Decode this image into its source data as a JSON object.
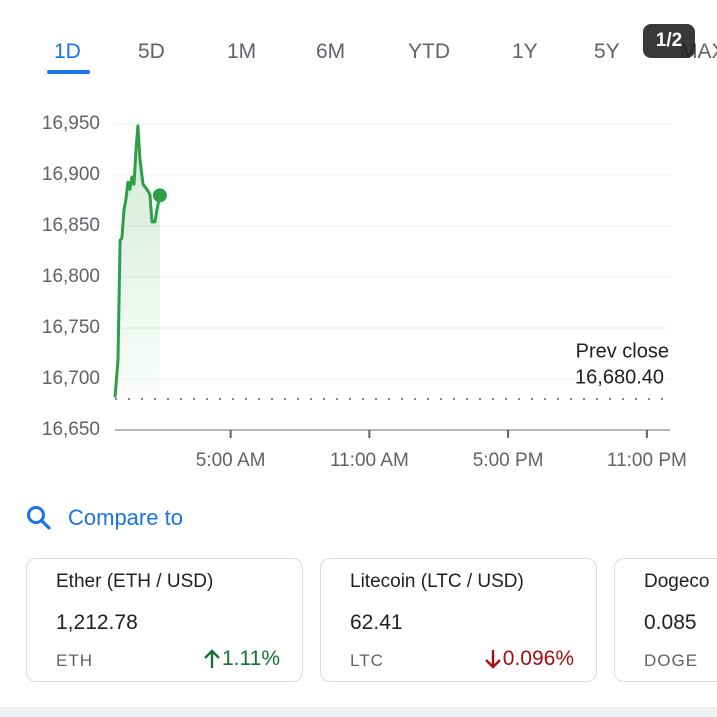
{
  "badge": "1/2",
  "tabs": [
    "1D",
    "5D",
    "1M",
    "6M",
    "YTD",
    "1Y",
    "5Y",
    "MAX"
  ],
  "chart_data": {
    "type": "line",
    "color": "#2e9e47",
    "grid": true,
    "x": [
      0,
      0.13,
      0.22,
      0.3,
      0.39,
      0.47,
      0.56,
      0.65,
      0.73,
      0.82,
      0.91,
      0.99,
      1.08,
      1.21,
      1.38,
      1.51,
      1.6,
      1.73,
      1.81,
      1.94
    ],
    "values": [
      16682,
      16719,
      16836,
      16838,
      16866,
      16876,
      16893,
      16886,
      16898,
      16891,
      16925,
      16948,
      16915,
      16891,
      16886,
      16881,
      16854,
      16854,
      16866,
      16880
    ],
    "xlim": [
      0,
      24
    ],
    "xticks": [
      {
        "value": 5,
        "label": "5:00 AM"
      },
      {
        "value": 11,
        "label": "11:00 AM"
      },
      {
        "value": 17,
        "label": "5:00 PM"
      },
      {
        "value": 23,
        "label": "11:00 PM"
      }
    ],
    "ylim": [
      16650,
      16950
    ],
    "yticks": [
      {
        "value": 16650,
        "label": "16,650"
      },
      {
        "value": 16700,
        "label": "16,700"
      },
      {
        "value": 16750,
        "label": "16,750"
      },
      {
        "value": 16800,
        "label": "16,800"
      },
      {
        "value": 16850,
        "label": "16,850"
      },
      {
        "value": 16900,
        "label": "16,900"
      },
      {
        "value": 16950,
        "label": "16,950"
      }
    ],
    "prev_close": {
      "label": "Prev close",
      "value": 16680.4,
      "value_label": "16,680.40"
    }
  },
  "compare": {
    "title": "Compare to",
    "cards": [
      {
        "name": "Ether (ETH / USD)",
        "price": "1,212.78",
        "symbol": "ETH",
        "change": "1.11%",
        "direction": "up"
      },
      {
        "name": "Litecoin (LTC / USD)",
        "price": "62.41",
        "symbol": "LTC",
        "change": "0.096%",
        "direction": "down"
      },
      {
        "name": "Dogeco",
        "price": "0.085",
        "symbol": "DOGE"
      }
    ]
  }
}
